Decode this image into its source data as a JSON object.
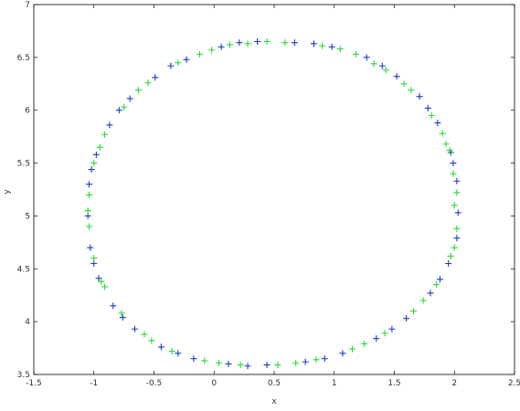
{
  "chart_data": {
    "type": "scatter",
    "title": "",
    "xlabel": "x",
    "ylabel": "y",
    "xlim": [
      -1.5,
      2.5
    ],
    "ylim": [
      3.5,
      7
    ],
    "x_ticks": [
      -1.5,
      -1,
      -0.5,
      0,
      0.5,
      1,
      1.5,
      2,
      2.5
    ],
    "x_tick_labels": [
      "-1.5",
      "-1",
      "-0.5",
      "0",
      "0.5",
      "1",
      "1.5",
      "2",
      "2.5"
    ],
    "y_ticks": [
      3.5,
      4,
      4.5,
      5,
      5.5,
      6,
      6.5,
      7
    ],
    "y_tick_labels": [
      "3.5",
      "4",
      "4.5",
      "5",
      "5.5",
      "6",
      "6.5",
      "7"
    ],
    "grid": false,
    "legend": "none",
    "marker": "+",
    "series": [
      {
        "color": "#1a3fbf",
        "description": "ring of points (blue)",
        "points": [
          [
            2.03,
            5.03
          ],
          [
            2.02,
            5.33
          ],
          [
            1.97,
            5.6
          ],
          [
            1.86,
            5.88
          ],
          [
            1.71,
            6.13
          ],
          [
            1.52,
            6.32
          ],
          [
            1.27,
            6.5
          ],
          [
            0.98,
            6.6
          ],
          [
            0.67,
            6.64
          ],
          [
            0.36,
            6.65
          ],
          [
            0.06,
            6.6
          ],
          [
            -0.23,
            6.48
          ],
          [
            -0.49,
            6.31
          ],
          [
            -0.7,
            6.11
          ],
          [
            -0.87,
            5.86
          ],
          [
            -0.98,
            5.58
          ],
          [
            -1.04,
            5.3
          ],
          [
            -1.05,
            5.0
          ],
          [
            -1.03,
            4.7
          ],
          [
            -0.96,
            4.41
          ],
          [
            -0.84,
            4.15
          ],
          [
            -0.66,
            3.93
          ],
          [
            -0.44,
            3.76
          ],
          [
            -0.17,
            3.65
          ],
          [
            0.12,
            3.6
          ],
          [
            0.44,
            3.59
          ],
          [
            0.76,
            3.62
          ],
          [
            1.07,
            3.7
          ],
          [
            1.35,
            3.84
          ],
          [
            1.6,
            4.03
          ],
          [
            1.8,
            4.27
          ],
          [
            1.95,
            4.55
          ],
          [
            2.02,
            4.79
          ],
          [
            1.99,
            5.5
          ],
          [
            1.78,
            6.02
          ],
          [
            1.4,
            6.42
          ],
          [
            0.83,
            6.63
          ],
          [
            0.21,
            6.64
          ],
          [
            -0.36,
            6.42
          ],
          [
            -0.79,
            6.0
          ],
          [
            -1.02,
            5.44
          ],
          [
            -1.0,
            4.55
          ],
          [
            -0.76,
            4.04
          ],
          [
            -0.3,
            3.7
          ],
          [
            0.28,
            3.58
          ],
          [
            0.92,
            3.65
          ],
          [
            1.48,
            3.93
          ],
          [
            1.88,
            4.4
          ]
        ]
      },
      {
        "color": "#2bd83a",
        "description": "ring of points (green)",
        "points": [
          [
            2.0,
            5.1
          ],
          [
            1.99,
            5.4
          ],
          [
            1.93,
            5.68
          ],
          [
            1.81,
            5.95
          ],
          [
            1.64,
            6.19
          ],
          [
            1.43,
            6.38
          ],
          [
            1.18,
            6.53
          ],
          [
            0.9,
            6.61
          ],
          [
            0.59,
            6.64
          ],
          [
            0.28,
            6.63
          ],
          [
            -0.02,
            6.57
          ],
          [
            -0.3,
            6.45
          ],
          [
            -0.55,
            6.26
          ],
          [
            -0.75,
            6.03
          ],
          [
            -0.91,
            5.77
          ],
          [
            -1.0,
            5.5
          ],
          [
            -1.04,
            5.2
          ],
          [
            -1.04,
            4.9
          ],
          [
            -1.0,
            4.6
          ],
          [
            -0.91,
            4.33
          ],
          [
            -0.77,
            4.08
          ],
          [
            -0.58,
            3.88
          ],
          [
            -0.35,
            3.72
          ],
          [
            -0.08,
            3.63
          ],
          [
            0.22,
            3.59
          ],
          [
            0.53,
            3.59
          ],
          [
            0.85,
            3.64
          ],
          [
            1.15,
            3.74
          ],
          [
            1.42,
            3.89
          ],
          [
            1.66,
            4.1
          ],
          [
            1.85,
            4.35
          ],
          [
            1.97,
            4.62
          ],
          [
            2.02,
            4.88
          ],
          [
            2.02,
            5.22
          ],
          [
            1.9,
            5.78
          ],
          [
            1.58,
            6.25
          ],
          [
            1.05,
            6.58
          ],
          [
            0.44,
            6.65
          ],
          [
            -0.12,
            6.53
          ],
          [
            -0.63,
            6.19
          ],
          [
            -0.95,
            5.65
          ],
          [
            -1.05,
            5.05
          ],
          [
            -0.94,
            4.38
          ],
          [
            -0.52,
            3.82
          ],
          [
            0.04,
            3.61
          ],
          [
            0.68,
            3.61
          ],
          [
            1.25,
            3.79
          ],
          [
            1.74,
            4.2
          ],
          [
            2.0,
            4.7
          ],
          [
            1.96,
            5.62
          ],
          [
            1.33,
            6.44
          ],
          [
            0.13,
            6.62
          ]
        ]
      }
    ]
  }
}
